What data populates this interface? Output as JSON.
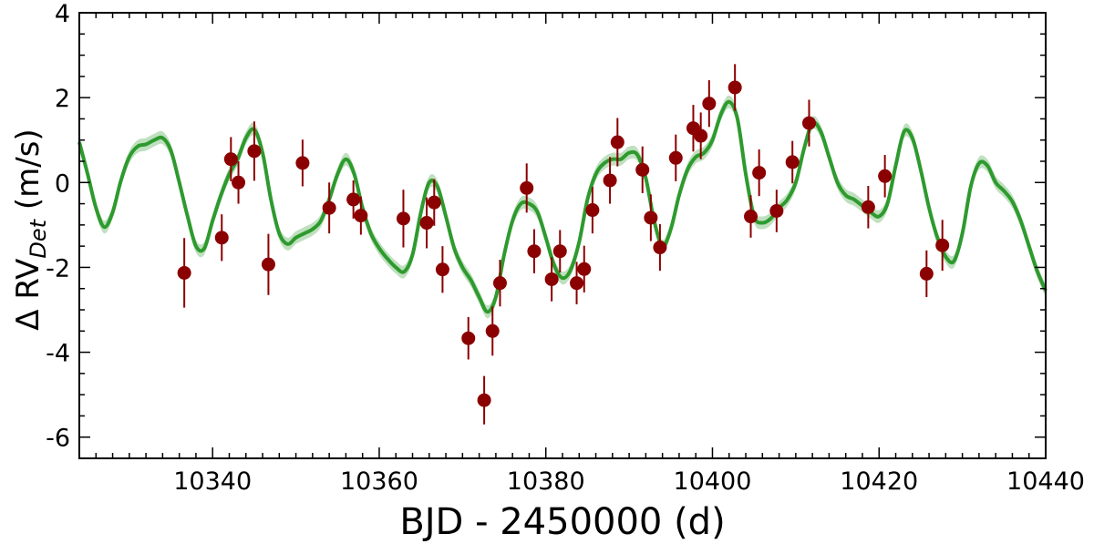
{
  "chart_data": {
    "type": "scatter",
    "xlabel": "BJD - 2450000 (d)",
    "ylabel": {
      "prefix": "Δ RV",
      "subscript": "Det",
      "suffix": " (m/s)"
    },
    "xlim": [
      10324,
      10440
    ],
    "ylim": [
      -6.5,
      4
    ],
    "xticks": [
      10340,
      10360,
      10380,
      10400,
      10420,
      10440
    ],
    "yticks": [
      -6,
      -4,
      -2,
      0,
      2,
      4
    ],
    "x_minor_step": 2,
    "y_minor_step": 0.5,
    "grid": false,
    "colors": {
      "points": "#8b0000",
      "model": "#2e9a2e",
      "band": "#bfe0bf"
    },
    "points": [
      {
        "x": 10336.6,
        "y": -2.13,
        "err": 0.82
      },
      {
        "x": 10341.1,
        "y": -1.3,
        "err": 0.55
      },
      {
        "x": 10342.2,
        "y": 0.55,
        "err": 0.52
      },
      {
        "x": 10343.1,
        "y": 0.0,
        "err": 0.5
      },
      {
        "x": 10345.0,
        "y": 0.74,
        "err": 0.7
      },
      {
        "x": 10346.7,
        "y": -1.93,
        "err": 0.72
      },
      {
        "x": 10350.8,
        "y": 0.46,
        "err": 0.55
      },
      {
        "x": 10354.0,
        "y": -0.6,
        "err": 0.6
      },
      {
        "x": 10356.9,
        "y": -0.4,
        "err": 0.45
      },
      {
        "x": 10357.8,
        "y": -0.78,
        "err": 0.45
      },
      {
        "x": 10362.9,
        "y": -0.85,
        "err": 0.68
      },
      {
        "x": 10365.7,
        "y": -0.95,
        "err": 0.6
      },
      {
        "x": 10366.6,
        "y": -0.47,
        "err": 0.55
      },
      {
        "x": 10367.6,
        "y": -2.05,
        "err": 0.55
      },
      {
        "x": 10370.7,
        "y": -3.67,
        "err": 0.5
      },
      {
        "x": 10372.6,
        "y": -5.13,
        "err": 0.57
      },
      {
        "x": 10373.6,
        "y": -3.5,
        "err": 0.58
      },
      {
        "x": 10374.5,
        "y": -2.37,
        "err": 0.55
      },
      {
        "x": 10377.7,
        "y": -0.13,
        "err": 0.58
      },
      {
        "x": 10378.6,
        "y": -1.62,
        "err": 0.52
      },
      {
        "x": 10380.7,
        "y": -2.28,
        "err": 0.52
      },
      {
        "x": 10381.7,
        "y": -1.62,
        "err": 0.5
      },
      {
        "x": 10383.7,
        "y": -2.37,
        "err": 0.5
      },
      {
        "x": 10384.6,
        "y": -2.04,
        "err": 0.55
      },
      {
        "x": 10385.6,
        "y": -0.65,
        "err": 0.55
      },
      {
        "x": 10387.7,
        "y": 0.05,
        "err": 0.55
      },
      {
        "x": 10388.6,
        "y": 0.95,
        "err": 0.57
      },
      {
        "x": 10391.6,
        "y": 0.3,
        "err": 0.55
      },
      {
        "x": 10392.6,
        "y": -0.83,
        "err": 0.55
      },
      {
        "x": 10393.7,
        "y": -1.53,
        "err": 0.55
      },
      {
        "x": 10395.6,
        "y": 0.58,
        "err": 0.55
      },
      {
        "x": 10397.7,
        "y": 1.28,
        "err": 0.55
      },
      {
        "x": 10398.6,
        "y": 1.1,
        "err": 0.55
      },
      {
        "x": 10399.6,
        "y": 1.86,
        "err": 0.55
      },
      {
        "x": 10402.7,
        "y": 2.24,
        "err": 0.55
      },
      {
        "x": 10404.6,
        "y": -0.8,
        "err": 0.5
      },
      {
        "x": 10405.6,
        "y": 0.23,
        "err": 0.55
      },
      {
        "x": 10407.7,
        "y": -0.67,
        "err": 0.5
      },
      {
        "x": 10409.6,
        "y": 0.48,
        "err": 0.5
      },
      {
        "x": 10411.6,
        "y": 1.4,
        "err": 0.55
      },
      {
        "x": 10418.7,
        "y": -0.58,
        "err": 0.5
      },
      {
        "x": 10420.7,
        "y": 0.15,
        "err": 0.5
      },
      {
        "x": 10425.7,
        "y": -2.15,
        "err": 0.55
      },
      {
        "x": 10427.6,
        "y": -1.48,
        "err": 0.6
      }
    ],
    "model_curve": {
      "x": [
        10324,
        10325,
        10326,
        10327,
        10328,
        10329,
        10330,
        10331,
        10332,
        10333,
        10334,
        10335,
        10336,
        10337,
        10338,
        10339,
        10340,
        10341,
        10342,
        10343,
        10344,
        10345,
        10346,
        10347,
        10348,
        10349,
        10350,
        10351,
        10352,
        10353,
        10354,
        10355,
        10356,
        10357,
        10358,
        10359,
        10360,
        10361,
        10362,
        10363,
        10364,
        10365,
        10366,
        10367,
        10368,
        10369,
        10370,
        10371,
        10372,
        10373,
        10374,
        10375,
        10376,
        10377,
        10378,
        10379,
        10380,
        10381,
        10382,
        10383,
        10384,
        10385,
        10386,
        10387,
        10388,
        10389,
        10390,
        10391,
        10392,
        10393,
        10394,
        10395,
        10396,
        10397,
        10398,
        10399,
        10400,
        10401,
        10402,
        10403,
        10404,
        10405,
        10406,
        10407,
        10408,
        10409,
        10410,
        10411,
        10412,
        10413,
        10414,
        10415,
        10416,
        10417,
        10418,
        10419,
        10420,
        10421,
        10422,
        10423,
        10424,
        10425,
        10426,
        10427,
        10428,
        10429,
        10430,
        10431,
        10432,
        10433,
        10434,
        10435,
        10436,
        10437,
        10438,
        10439,
        10440
      ],
      "y": [
        0.95,
        0.2,
        -0.6,
        -1.05,
        -0.7,
        0.05,
        0.6,
        0.85,
        0.9,
        1.0,
        1.05,
        0.75,
        0.0,
        -0.8,
        -1.5,
        -1.55,
        -0.9,
        -0.3,
        0.2,
        0.55,
        1.05,
        1.25,
        0.7,
        -0.4,
        -1.2,
        -1.45,
        -1.3,
        -1.2,
        -1.1,
        -0.9,
        -0.4,
        0.2,
        0.55,
        0.2,
        -0.6,
        -1.2,
        -1.55,
        -1.8,
        -2.0,
        -2.1,
        -1.7,
        -0.7,
        0.0,
        -0.1,
        -0.8,
        -1.55,
        -2.0,
        -2.3,
        -2.7,
        -3.05,
        -2.7,
        -1.7,
        -0.9,
        -0.5,
        -0.5,
        -0.7,
        -1.3,
        -1.95,
        -2.25,
        -2.05,
        -1.4,
        -0.4,
        0.2,
        0.45,
        0.55,
        0.55,
        0.7,
        0.65,
        0.1,
        -0.9,
        -1.5,
        -1.1,
        -0.3,
        0.3,
        0.6,
        0.7,
        1.0,
        1.6,
        1.9,
        1.5,
        0.2,
        -0.8,
        -0.95,
        -0.85,
        -0.6,
        -0.4,
        0.0,
        0.8,
        1.4,
        1.2,
        0.6,
        0.0,
        -0.3,
        -0.4,
        -0.55,
        -0.7,
        -0.8,
        -0.5,
        0.4,
        1.2,
        1.05,
        0.3,
        -0.6,
        -1.3,
        -1.75,
        -1.85,
        -1.2,
        -0.1,
        0.45,
        0.4,
        0.0,
        -0.2,
        -0.45,
        -0.9,
        -1.5,
        -2.1,
        -2.55
      ],
      "band_halfwidth": 0.15
    }
  }
}
